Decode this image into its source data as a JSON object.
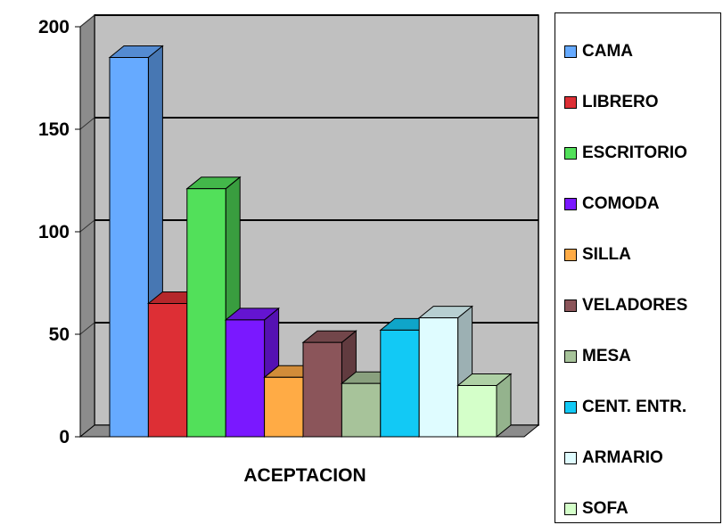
{
  "chart_data": {
    "type": "bar",
    "categories": [
      "ACEPTACION"
    ],
    "xlabel": "",
    "ylabel": "",
    "ylim": [
      0,
      200
    ],
    "yticks": [
      0,
      50,
      100,
      150,
      200
    ],
    "grid": true,
    "legend_position": "right",
    "three_d": true,
    "series": [
      {
        "name": "CAMA",
        "values": [
          185
        ],
        "color": "#66aaff"
      },
      {
        "name": "LIBRERO",
        "values": [
          65
        ],
        "color": "#dd2f35"
      },
      {
        "name": "ESCRITORIO",
        "values": [
          121
        ],
        "color": "#52e05a"
      },
      {
        "name": "COMODA",
        "values": [
          57
        ],
        "color": "#7a18ff"
      },
      {
        "name": "SILLA",
        "values": [
          29
        ],
        "color": "#ffab45"
      },
      {
        "name": "VELADORES",
        "values": [
          46
        ],
        "color": "#8b555a"
      },
      {
        "name": "MESA",
        "values": [
          26
        ],
        "color": "#a7c39a"
      },
      {
        "name": "CENT. ENTR.",
        "values": [
          52
        ],
        "color": "#12c9f5"
      },
      {
        "name": "ARMARIO",
        "values": [
          58
        ],
        "color": "#dffcff"
      },
      {
        "name": "SOFA",
        "values": [
          25
        ],
        "color": "#d4ffc9"
      }
    ]
  },
  "colors": {
    "plot_background": "#c0c0c0",
    "wall_shadow": "#8c8c8c",
    "gridline": "#000000"
  }
}
